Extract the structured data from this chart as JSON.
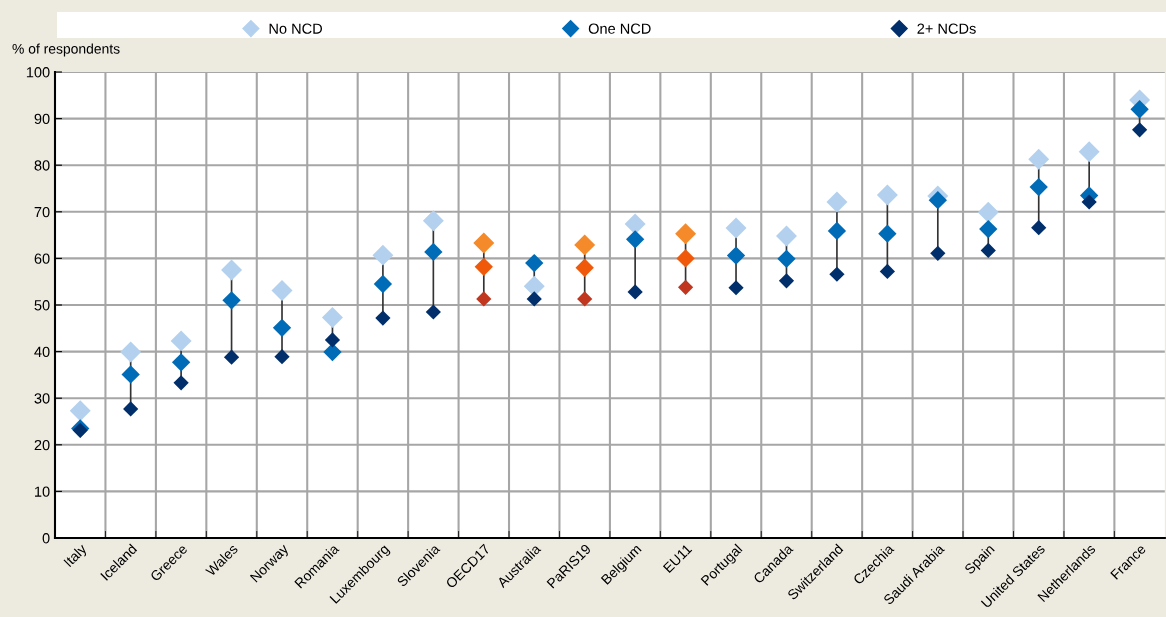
{
  "chart_data": {
    "type": "scatter",
    "ylabel": "% of respondents",
    "categories": [
      "Italy",
      "Iceland",
      "Greece",
      "Wales",
      "Norway",
      "Romania",
      "Luxembourg",
      "Slovenia",
      "OECD17",
      "Australia",
      "PaRIS19",
      "Belgium",
      "EU11",
      "Portugal",
      "Canada",
      "Switzerland",
      "Czechia",
      "Saudi Arabia",
      "Spain",
      "United States",
      "Netherlands",
      "France"
    ],
    "series": [
      {
        "name": "No NCD",
        "color": "#b3d1ee",
        "colors": [
          "#b3d1ee",
          "#b3d1ee",
          "#b3d1ee",
          "#b3d1ee",
          "#b3d1ee",
          "#b3d1ee",
          "#b3d1ee",
          "#b3d1ee",
          "#f58a2a",
          "#b3d1ee",
          "#f58a2a",
          "#b3d1ee",
          "#f58a2a",
          "#b3d1ee",
          "#b3d1ee",
          "#b3d1ee",
          "#b3d1ee",
          "#b3d1ee",
          "#b3d1ee",
          "#b3d1ee",
          "#b3d1ee",
          "#b3d1ee"
        ],
        "values": [
          27.3,
          39.9,
          42.3,
          57.5,
          53.1,
          47.3,
          60.7,
          68.1,
          63.3,
          54.0,
          62.9,
          67.4,
          65.3,
          66.5,
          64.8,
          72.1,
          73.6,
          73.4,
          69.9,
          81.3,
          82.9,
          94.0
        ]
      },
      {
        "name": "One NCD",
        "color": "#006bb6",
        "colors": [
          "#006bb6",
          "#006bb6",
          "#006bb6",
          "#006bb6",
          "#006bb6",
          "#006bb6",
          "#006bb6",
          "#006bb6",
          "#f0580a",
          "#006bb6",
          "#f0580a",
          "#006bb6",
          "#f0580a",
          "#006bb6",
          "#006bb6",
          "#006bb6",
          "#006bb6",
          "#006bb6",
          "#006bb6",
          "#006bb6",
          "#006bb6",
          "#006bb6"
        ],
        "values": [
          23.5,
          35.1,
          37.7,
          51.0,
          45.1,
          39.9,
          54.5,
          61.4,
          58.2,
          59.0,
          58.0,
          64.1,
          60.0,
          60.6,
          59.9,
          65.9,
          65.3,
          72.5,
          66.3,
          75.3,
          73.5,
          92.0
        ]
      },
      {
        "name": "2+ NCDs",
        "color": "#002f6c",
        "colors": [
          "#002f6c",
          "#002f6c",
          "#002f6c",
          "#002f6c",
          "#002f6c",
          "#002f6c",
          "#002f6c",
          "#002f6c",
          "#c0361e",
          "#002f6c",
          "#c0361e",
          "#002f6c",
          "#c0361e",
          "#002f6c",
          "#002f6c",
          "#002f6c",
          "#002f6c",
          "#002f6c",
          "#002f6c",
          "#002f6c",
          "#002f6c",
          "#002f6c"
        ],
        "values": [
          23.1,
          27.7,
          33.3,
          38.8,
          38.9,
          42.5,
          47.2,
          48.5,
          51.3,
          51.3,
          51.3,
          52.8,
          53.8,
          53.7,
          55.2,
          56.6,
          57.2,
          61.1,
          61.7,
          66.6,
          72.1,
          87.6
        ]
      }
    ],
    "ylim": [
      0,
      100
    ],
    "yticks": [
      0,
      10,
      20,
      30,
      40,
      50,
      60,
      70,
      80,
      90,
      100
    ],
    "grid": true,
    "legend": "top",
    "marker": "diamond"
  }
}
